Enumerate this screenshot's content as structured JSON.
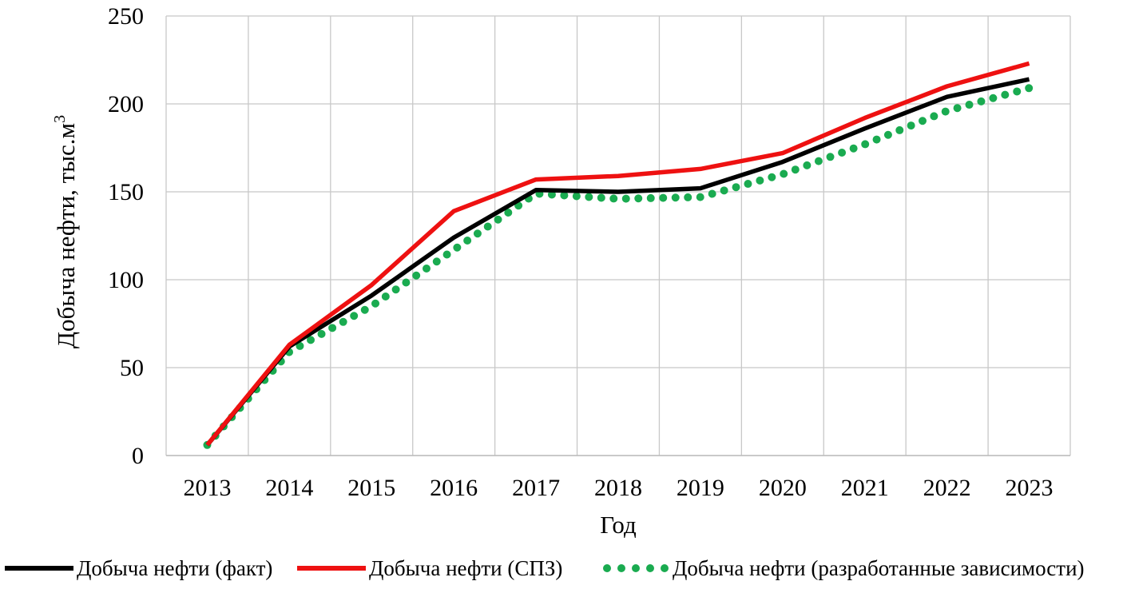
{
  "chart_data": {
    "type": "line",
    "title": "",
    "xlabel": "Год",
    "ylabel": "Добыча нефти, тыс.м",
    "ylabel_superscript": "3",
    "ylim": [
      0,
      250
    ],
    "yticks": [
      0,
      50,
      100,
      150,
      200,
      250
    ],
    "grid": true,
    "legend_position": "bottom",
    "categories": [
      "2013",
      "2014",
      "2015",
      "2016",
      "2017",
      "2018",
      "2019",
      "2020",
      "2021",
      "2022",
      "2023"
    ],
    "series": [
      {
        "name": "Добыча нефти (факт)",
        "color": "#000000",
        "style": "solid",
        "values": [
          6,
          62,
          91,
          124,
          151,
          150,
          152,
          167,
          186,
          204,
          214
        ]
      },
      {
        "name": "Добыча нефти (СПЗ)",
        "color": "#ee1111",
        "style": "solid",
        "values": [
          6,
          63,
          97,
          139,
          157,
          159,
          163,
          172,
          192,
          210,
          223
        ]
      },
      {
        "name": "Добыча нефти (разработанные зависимости)",
        "color": "#1aab50",
        "style": "dotted",
        "values": [
          6,
          59,
          85,
          117,
          149,
          146,
          147,
          160,
          177,
          196,
          209
        ]
      }
    ]
  }
}
